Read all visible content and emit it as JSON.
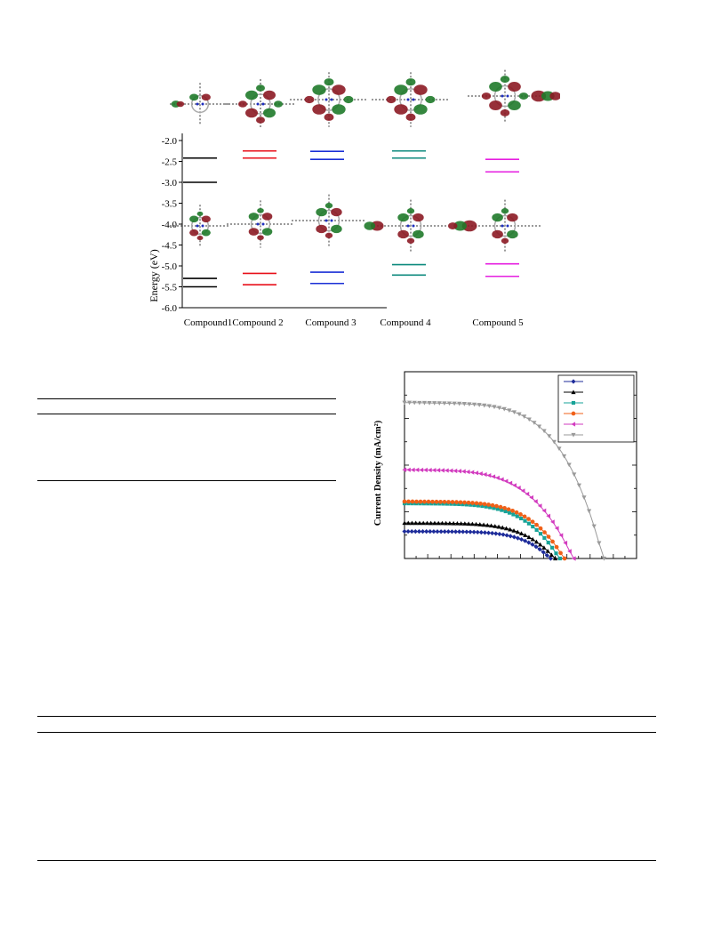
{
  "energy_diagram": {
    "y_axis_label": "Energy (eV)",
    "y_ticks": [
      "-2.0",
      "-2.5",
      "-3.0",
      "-3.5",
      "-4.0",
      "-4.5",
      "-5.0",
      "-5.5",
      "-6.0"
    ],
    "compound_labels": [
      "Compound1",
      "Compound 2",
      "Compound 3",
      "Compound 4",
      "Compound 5"
    ],
    "colors": [
      "#000000",
      "#e8101a",
      "#1a2fd6",
      "#0e8a7e",
      "#e61fe0"
    ],
    "levels": [
      {
        "compound": "Compound1",
        "lumo": [
          -2.42,
          -3.0
        ],
        "homo": [
          -5.3,
          -5.5
        ]
      },
      {
        "compound": "Compound 2",
        "lumo": [
          -2.25,
          -2.42
        ],
        "homo": [
          -5.18,
          -5.45
        ]
      },
      {
        "compound": "Compound 3",
        "lumo": [
          -2.26,
          -2.45
        ],
        "homo": [
          -5.15,
          -5.42
        ]
      },
      {
        "compound": "Compound 4",
        "lumo": [
          -2.25,
          -2.42
        ],
        "homo": [
          -4.97,
          -5.22
        ]
      },
      {
        "compound": "Compound 5",
        "lumo": [
          -2.45,
          -2.75
        ],
        "homo": [
          -4.95,
          -5.25
        ]
      }
    ],
    "orbital_icons": [
      "molecular-orbital-lumo",
      "molecular-orbital-homo"
    ]
  },
  "jv_chart": {
    "chart_data": {
      "type": "line",
      "title": "",
      "xlabel": "",
      "ylabel": "Current Density (mA/cm²)",
      "xlim": [
        0,
        1.0
      ],
      "ylim": [
        0,
        20
      ],
      "grid": false,
      "legend_position": "top-right",
      "series": [
        {
          "color": "#1d2b9a",
          "marker": "diamond",
          "isc": 2.9,
          "voc": 0.63,
          "fill": 0.72
        },
        {
          "color": "#000000",
          "marker": "triangle-up",
          "isc": 3.8,
          "voc": 0.65,
          "fill": 0.68
        },
        {
          "color": "#17a398",
          "marker": "square",
          "isc": 5.9,
          "voc": 0.67,
          "fill": 0.66
        },
        {
          "color": "#f06018",
          "marker": "circle",
          "isc": 6.1,
          "voc": 0.69,
          "fill": 0.67
        },
        {
          "color": "#d23bbf",
          "marker": "triangle-left",
          "isc": 9.5,
          "voc": 0.73,
          "fill": 0.62
        },
        {
          "color": "#9a9a9a",
          "marker": "triangle-down",
          "isc": 16.7,
          "voc": 0.86,
          "fill": 0.68
        }
      ]
    }
  }
}
